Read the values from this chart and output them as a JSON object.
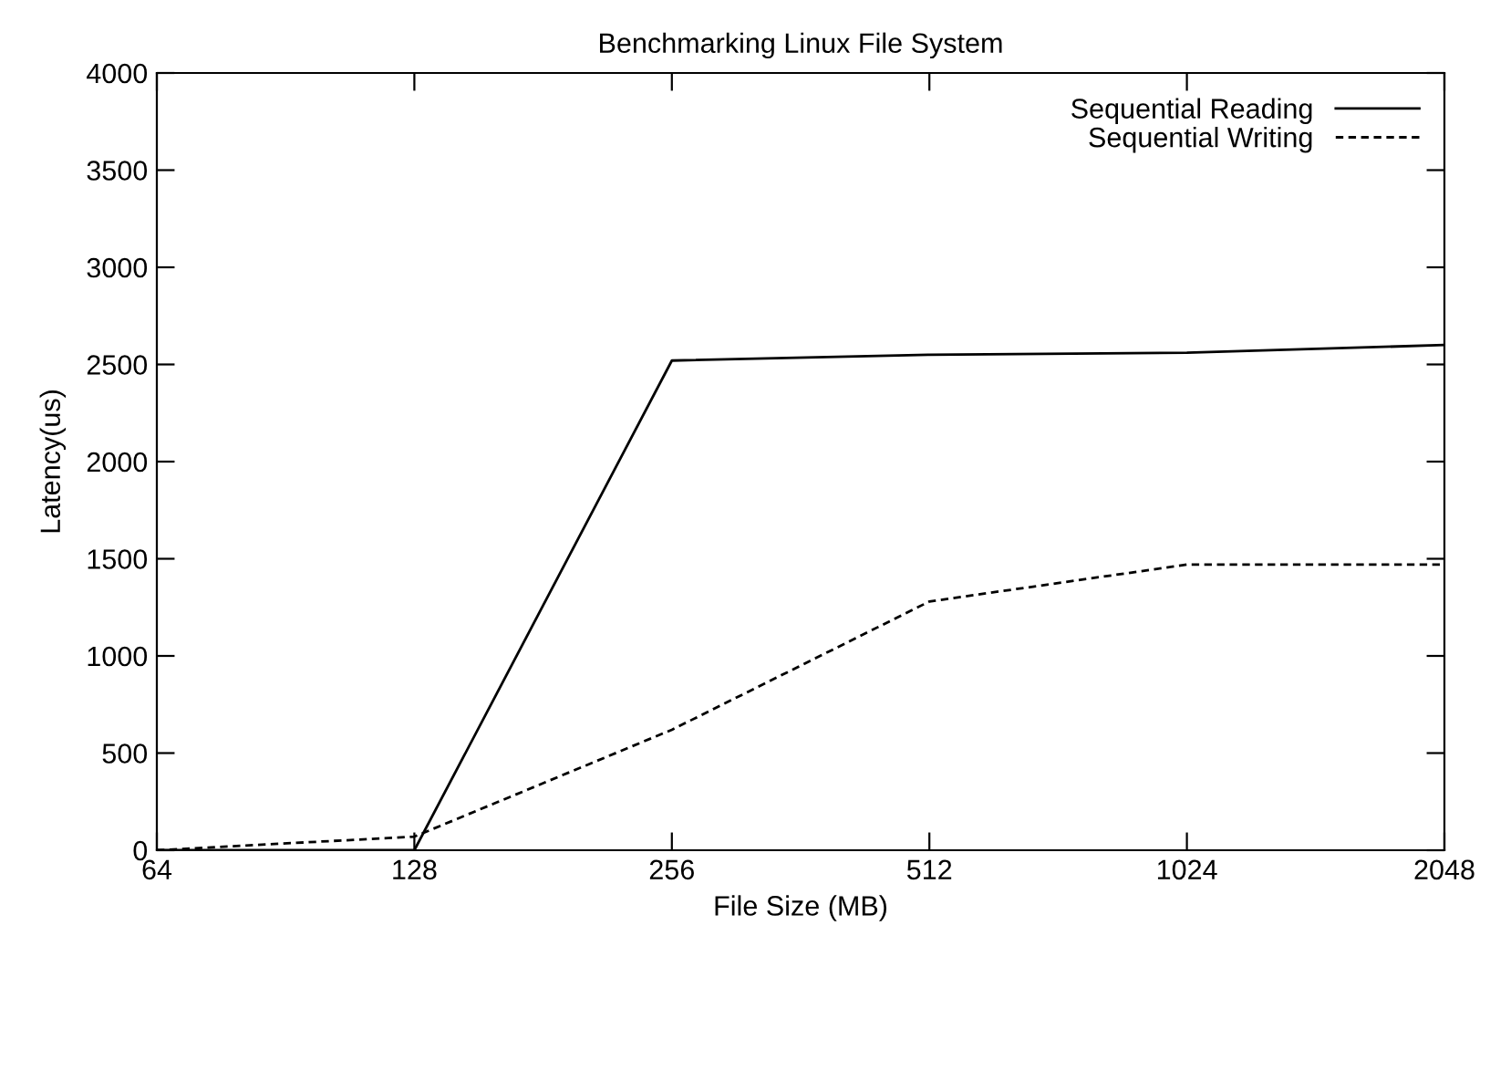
{
  "chart_data": {
    "type": "line",
    "title": "Benchmarking Linux File System",
    "xlabel": "File Size (MB)",
    "ylabel": "Latency(us)",
    "x": [
      64,
      128,
      256,
      512,
      1024,
      2048
    ],
    "series": [
      {
        "name": "Sequential Reading",
        "color": "#000000",
        "line_style": "solid",
        "values": [
          0,
          0,
          2520,
          2550,
          2560,
          2600
        ]
      },
      {
        "name": "Sequential Writing",
        "color": "#000000",
        "line_style": "dashed",
        "values": [
          0,
          70,
          620,
          1280,
          1470,
          1470
        ]
      }
    ],
    "log": "x",
    "xlim": [
      64,
      2048
    ],
    "xticks": [
      64,
      128,
      256,
      512,
      1024,
      2048
    ],
    "ylim": [
      0,
      4000
    ],
    "yticks": [
      0,
      500,
      1000,
      1500,
      2000,
      2500,
      3000,
      3500,
      4000
    ],
    "grid": false,
    "legend": "top right",
    "marker": "none"
  }
}
